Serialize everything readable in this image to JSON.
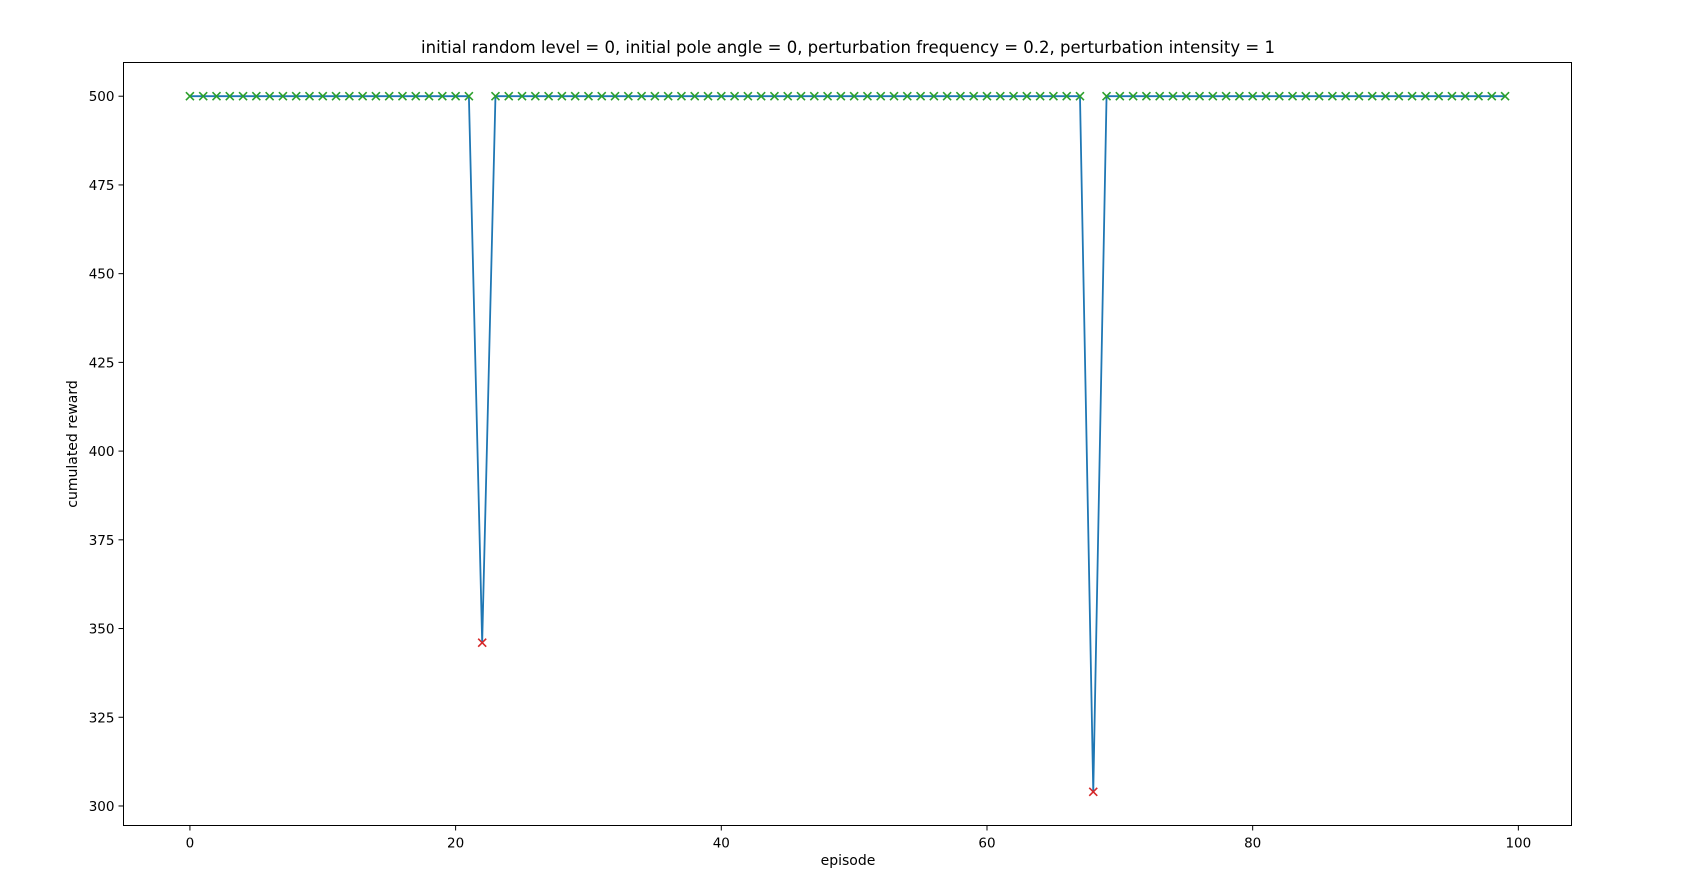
{
  "chart_data": {
    "type": "line",
    "title": "initial random level = 0, initial pole angle = 0, perturbation frequency = 0.2, perturbation intensity = 1",
    "xlabel": "episode",
    "ylabel": "cumulated reward",
    "xlim": [
      -5,
      104
    ],
    "ylim": [
      294.5,
      509.5
    ],
    "xticks": [
      0,
      20,
      40,
      60,
      80,
      100
    ],
    "yticks": [
      300,
      325,
      350,
      375,
      400,
      425,
      450,
      475,
      500
    ],
    "grid": false,
    "colors": {
      "line": "#1f77b4",
      "success_marker": "#2ca02c",
      "failure_marker": "#d62728"
    },
    "marker": "x",
    "x": [
      0,
      1,
      2,
      3,
      4,
      5,
      6,
      7,
      8,
      9,
      10,
      11,
      12,
      13,
      14,
      15,
      16,
      17,
      18,
      19,
      20,
      21,
      22,
      23,
      24,
      25,
      26,
      27,
      28,
      29,
      30,
      31,
      32,
      33,
      34,
      35,
      36,
      37,
      38,
      39,
      40,
      41,
      42,
      43,
      44,
      45,
      46,
      47,
      48,
      49,
      50,
      51,
      52,
      53,
      54,
      55,
      56,
      57,
      58,
      59,
      60,
      61,
      62,
      63,
      64,
      65,
      66,
      67,
      68,
      69,
      70,
      71,
      72,
      73,
      74,
      75,
      76,
      77,
      78,
      79,
      80,
      81,
      82,
      83,
      84,
      85,
      86,
      87,
      88,
      89,
      90,
      91,
      92,
      93,
      94,
      95,
      96,
      97,
      98,
      99
    ],
    "values": [
      500,
      500,
      500,
      500,
      500,
      500,
      500,
      500,
      500,
      500,
      500,
      500,
      500,
      500,
      500,
      500,
      500,
      500,
      500,
      500,
      500,
      500,
      346,
      500,
      500,
      500,
      500,
      500,
      500,
      500,
      500,
      500,
      500,
      500,
      500,
      500,
      500,
      500,
      500,
      500,
      500,
      500,
      500,
      500,
      500,
      500,
      500,
      500,
      500,
      500,
      500,
      500,
      500,
      500,
      500,
      500,
      500,
      500,
      500,
      500,
      500,
      500,
      500,
      500,
      500,
      500,
      500,
      500,
      304,
      500,
      500,
      500,
      500,
      500,
      500,
      500,
      500,
      500,
      500,
      500,
      500,
      500,
      500,
      500,
      500,
      500,
      500,
      500,
      500,
      500,
      500,
      500,
      500,
      500,
      500,
      500,
      500,
      500,
      500,
      500
    ]
  }
}
